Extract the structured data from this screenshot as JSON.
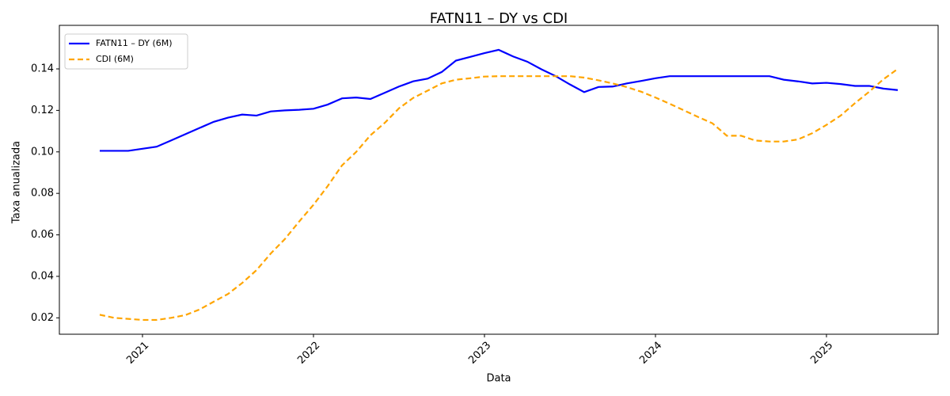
{
  "chart_data": {
    "type": "line",
    "title": "FATN11 – DY vs CDI",
    "x_label": "Data",
    "y_label": "Taxa anualizada",
    "x": [
      2020.75,
      2020.833,
      2020.917,
      2021.0,
      2021.083,
      2021.167,
      2021.25,
      2021.333,
      2021.417,
      2021.5,
      2021.583,
      2021.667,
      2021.75,
      2021.833,
      2021.917,
      2022.0,
      2022.083,
      2022.167,
      2022.25,
      2022.333,
      2022.417,
      2022.5,
      2022.583,
      2022.667,
      2022.75,
      2022.833,
      2022.917,
      2023.0,
      2023.083,
      2023.167,
      2023.25,
      2023.333,
      2023.417,
      2023.5,
      2023.583,
      2023.667,
      2023.75,
      2023.833,
      2023.917,
      2024.0,
      2024.083,
      2024.167,
      2024.25,
      2024.333,
      2024.417,
      2024.5,
      2024.583,
      2024.667,
      2024.75,
      2024.833,
      2024.917,
      2025.0,
      2025.083,
      2025.167,
      2025.25,
      2025.333,
      2025.417
    ],
    "series": [
      {
        "name": "FATN11 – DY (6M)",
        "color": "#0000ff",
        "linestyle": "solid",
        "values": [
          0.1005,
          0.1005,
          0.1005,
          0.1015,
          0.1025,
          0.1055,
          0.1085,
          0.1115,
          0.1145,
          0.1165,
          0.118,
          0.1175,
          0.1195,
          0.12,
          0.1203,
          0.1208,
          0.1228,
          0.1258,
          0.1262,
          0.1255,
          0.1285,
          0.1315,
          0.134,
          0.1353,
          0.1385,
          0.144,
          0.1458,
          0.1476,
          0.1492,
          0.146,
          0.1435,
          0.1398,
          0.1365,
          0.1325,
          0.1288,
          0.1313,
          0.1315,
          0.133,
          0.1342,
          0.1355,
          0.1365,
          0.1365,
          0.1365,
          0.1365,
          0.1365,
          0.1365,
          0.1365,
          0.1365,
          0.1348,
          0.134,
          0.133,
          0.1333,
          0.1327,
          0.1318,
          0.1318,
          0.1305,
          0.1298
        ]
      },
      {
        "name": "CDI (6M)",
        "color": "#ffa500",
        "linestyle": "dashed",
        "values": [
          0.0215,
          0.02,
          0.0195,
          0.019,
          0.019,
          0.02,
          0.0213,
          0.024,
          0.0278,
          0.0315,
          0.0368,
          0.043,
          0.051,
          0.058,
          0.0665,
          0.0745,
          0.0835,
          0.0935,
          0.1,
          0.108,
          0.114,
          0.121,
          0.126,
          0.1295,
          0.133,
          0.1348,
          0.1355,
          0.1363,
          0.1365,
          0.1365,
          0.1365,
          0.1365,
          0.1365,
          0.1365,
          0.1358,
          0.1345,
          0.133,
          0.1312,
          0.129,
          0.1262,
          0.1232,
          0.12,
          0.1168,
          0.1138,
          0.1078,
          0.1078,
          0.1055,
          0.105,
          0.105,
          0.106,
          0.109,
          0.113,
          0.1175,
          0.1235,
          0.129,
          0.135,
          0.14
        ]
      }
    ],
    "xlim": [
      2020.514,
      2025.653
    ],
    "ylim": [
      0.0121,
      0.161
    ],
    "xticks": [
      2021,
      2022,
      2023,
      2024,
      2025
    ],
    "yticks": [
      0.02,
      0.04,
      0.06,
      0.08,
      {
        "value": 0.1,
        "label": "0.10"
      },
      0.12,
      0.14
    ],
    "legend": "upper left",
    "grid": false
  }
}
